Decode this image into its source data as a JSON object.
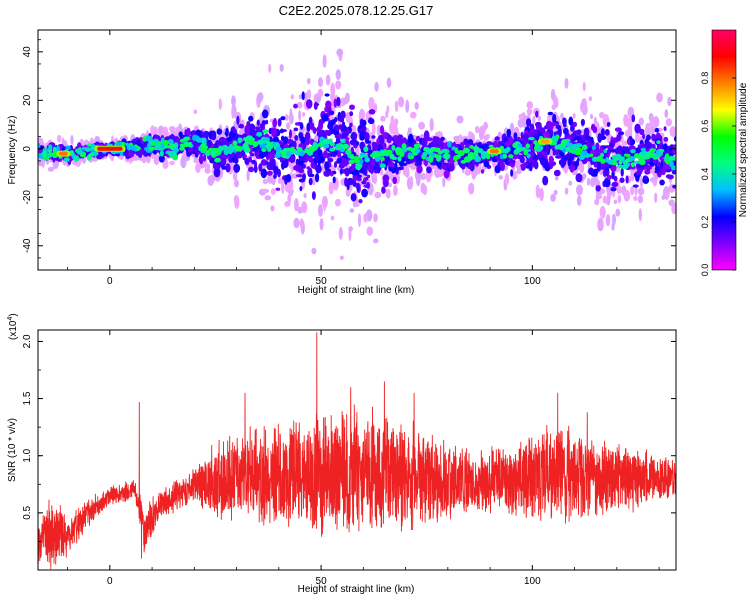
{
  "chart_data": {
    "title": "C2E2.2025.078.12.25.G17",
    "top_panel": {
      "type": "heatmap",
      "xlabel": "Height of straight line (km)",
      "ylabel": "Frequency (Hz)",
      "xlim": [
        -17,
        134
      ],
      "ylim": [
        -50,
        49
      ],
      "xticks": [
        0,
        50,
        100
      ],
      "yticks": [
        -40,
        -20,
        0,
        20,
        40
      ],
      "colorbar": {
        "label": "Normalized spectral amplitude",
        "range": [
          0,
          1
        ],
        "ticks": [
          0.0,
          0.2,
          0.4,
          0.6,
          0.8
        ],
        "colormap": [
          "#ff00ff",
          "#8000ff",
          "#0000ff",
          "#00bfff",
          "#00ff80",
          "#00ff00",
          "#ffff00",
          "#ff8000",
          "#ff0000",
          "#ff0066"
        ]
      },
      "ridge_center_hz": [
        {
          "x": -17,
          "y": -1
        },
        {
          "x": -10,
          "y": -2
        },
        {
          "x": -5,
          "y": -1
        },
        {
          "x": 0,
          "y": 0
        },
        {
          "x": 5,
          "y": 0
        },
        {
          "x": 10,
          "y": 1
        },
        {
          "x": 15,
          "y": 1
        },
        {
          "x": 20,
          "y": 3
        },
        {
          "x": 25,
          "y": -2
        },
        {
          "x": 30,
          "y": 1
        },
        {
          "x": 35,
          "y": 3
        },
        {
          "x": 40,
          "y": 0
        },
        {
          "x": 45,
          "y": -2
        },
        {
          "x": 50,
          "y": 3
        },
        {
          "x": 55,
          "y": 2
        },
        {
          "x": 58,
          "y": -6
        },
        {
          "x": 62,
          "y": -3
        },
        {
          "x": 66,
          "y": -2
        },
        {
          "x": 70,
          "y": -1
        },
        {
          "x": 75,
          "y": -2
        },
        {
          "x": 80,
          "y": -2
        },
        {
          "x": 85,
          "y": -3
        },
        {
          "x": 90,
          "y": -1
        },
        {
          "x": 95,
          "y": -1
        },
        {
          "x": 100,
          "y": 1
        },
        {
          "x": 105,
          "y": 3
        },
        {
          "x": 110,
          "y": 0
        },
        {
          "x": 115,
          "y": -3
        },
        {
          "x": 120,
          "y": -5
        },
        {
          "x": 125,
          "y": -4
        },
        {
          "x": 130,
          "y": -1
        },
        {
          "x": 134,
          "y": -6
        }
      ],
      "ridge_spread_hz": [
        {
          "x": -17,
          "y": 3
        },
        {
          "x": 0,
          "y": 2
        },
        {
          "x": 20,
          "y": 5
        },
        {
          "x": 35,
          "y": 10
        },
        {
          "x": 48,
          "y": 18
        },
        {
          "x": 58,
          "y": 20
        },
        {
          "x": 70,
          "y": 7
        },
        {
          "x": 90,
          "y": 5
        },
        {
          "x": 105,
          "y": 12
        },
        {
          "x": 120,
          "y": 12
        },
        {
          "x": 134,
          "y": 10
        }
      ],
      "peak_segments": [
        {
          "x_start": -3,
          "x_end": 3,
          "y": 0,
          "amplitude": 1.0
        },
        {
          "x_start": -12,
          "x_end": -10,
          "y": -2,
          "amplitude": 0.9
        },
        {
          "x_start": 90,
          "x_end": 92,
          "y": -1,
          "amplitude": 0.9
        },
        {
          "x_start": 102,
          "x_end": 104,
          "y": 3,
          "amplitude": 0.85
        }
      ]
    },
    "bottom_panel": {
      "type": "line",
      "xlabel": "Height of straight line (km)",
      "ylabel": "SNR (10 * v/v)",
      "y_multiplier_label": "(x10",
      "y_multiplier_exponent": "4",
      "y_multiplier_close": ")",
      "xlim": [
        -17,
        134
      ],
      "ylim": [
        0.0,
        2.1
      ],
      "xticks": [
        0,
        50,
        100
      ],
      "yticks": [
        0.5,
        1.0,
        1.5,
        2.0
      ],
      "ytick_labels": [
        "0.5",
        "1.0",
        "1.5",
        "2.0"
      ],
      "line_color": "#ee2222",
      "spikes": [
        {
          "x": 7,
          "y": 1.47
        },
        {
          "x": 7.5,
          "y": 0.1
        },
        {
          "x": 32,
          "y": 1.55
        },
        {
          "x": 49,
          "y": 2.08
        },
        {
          "x": 57,
          "y": 1.6
        },
        {
          "x": 65,
          "y": 1.65
        },
        {
          "x": 72,
          "y": 1.55
        },
        {
          "x": 106,
          "y": 1.55
        },
        {
          "x": 113,
          "y": 1.38
        }
      ],
      "envelope": [
        {
          "x": -17,
          "low": 0.0,
          "high": 0.42
        },
        {
          "x": -14,
          "low": 0.0,
          "high": 0.7
        },
        {
          "x": -10,
          "low": 0.1,
          "high": 0.5
        },
        {
          "x": -5,
          "low": 0.35,
          "high": 0.65
        },
        {
          "x": 0,
          "low": 0.55,
          "high": 0.75
        },
        {
          "x": 6,
          "low": 0.6,
          "high": 0.8
        },
        {
          "x": 8,
          "low": 0.1,
          "high": 0.6
        },
        {
          "x": 12,
          "low": 0.45,
          "high": 0.7
        },
        {
          "x": 20,
          "low": 0.55,
          "high": 0.95
        },
        {
          "x": 25,
          "low": 0.4,
          "high": 1.15
        },
        {
          "x": 35,
          "low": 0.35,
          "high": 1.3
        },
        {
          "x": 45,
          "low": 0.3,
          "high": 1.4
        },
        {
          "x": 55,
          "low": 0.25,
          "high": 1.45
        },
        {
          "x": 65,
          "low": 0.25,
          "high": 1.45
        },
        {
          "x": 75,
          "low": 0.35,
          "high": 1.25
        },
        {
          "x": 85,
          "low": 0.45,
          "high": 1.1
        },
        {
          "x": 95,
          "low": 0.45,
          "high": 1.1
        },
        {
          "x": 105,
          "low": 0.35,
          "high": 1.35
        },
        {
          "x": 115,
          "low": 0.4,
          "high": 1.2
        },
        {
          "x": 125,
          "low": 0.5,
          "high": 1.1
        },
        {
          "x": 134,
          "low": 0.6,
          "high": 1.0
        }
      ]
    }
  }
}
